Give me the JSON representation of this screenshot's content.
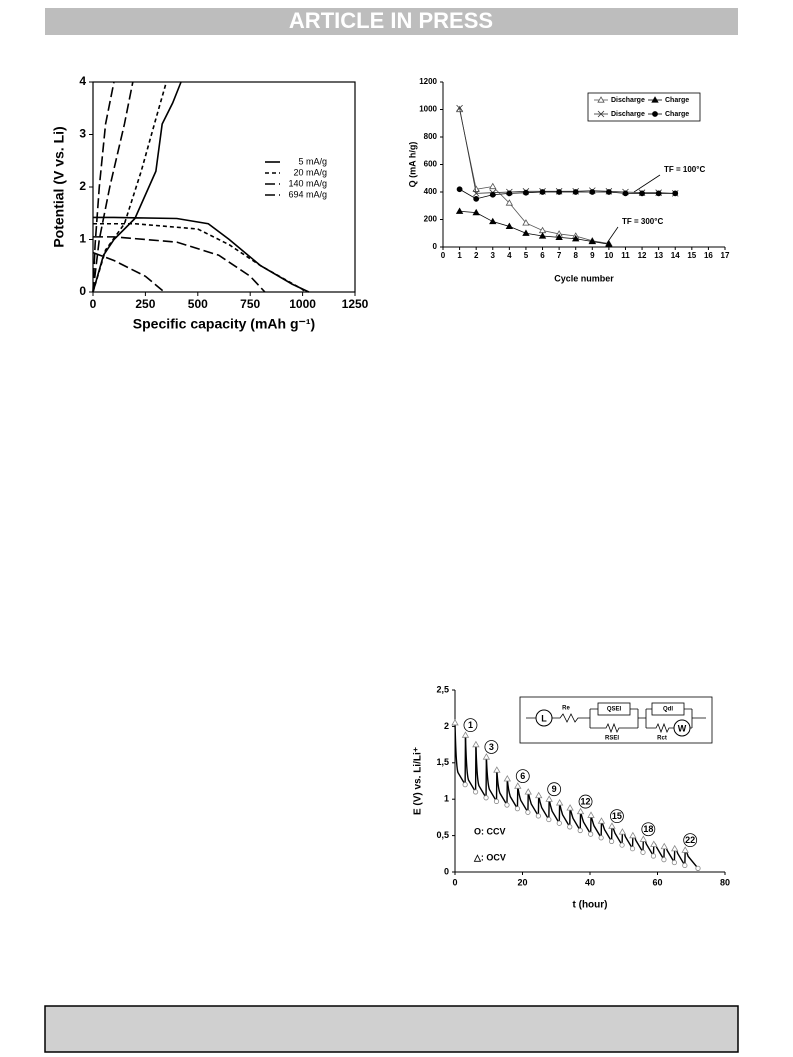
{
  "header": {
    "banner": "ARTICLE IN PRESS"
  },
  "chart_data": [
    {
      "type": "line",
      "xlabel": "Specific capacity (mAh g⁻¹)",
      "ylabel": "Potential (V vs. Li)",
      "xlim": [
        0,
        1250
      ],
      "xticks": [
        0,
        250,
        500,
        750,
        1000,
        1250
      ],
      "ylim": [
        0,
        4
      ],
      "yticks": [
        0,
        1,
        2,
        3,
        4
      ],
      "frame": true,
      "series": [
        {
          "name": "5 mA/g",
          "color": "#000000",
          "dash": "solid",
          "x": [
            0,
            100,
            400,
            550,
            650,
            800,
            950,
            1030,
            null,
            0,
            50,
            100,
            200,
            300,
            330,
            380,
            420
          ],
          "values": [
            1.42,
            1.42,
            1.4,
            1.3,
            1.0,
            0.5,
            0.15,
            0,
            null,
            0,
            0.7,
            1.0,
            1.4,
            2.3,
            3.2,
            3.6,
            4.0
          ]
        },
        {
          "name": "20 mA/g",
          "color": "#000000",
          "dash": "short",
          "x": [
            0,
            200,
            500,
            650,
            800,
            1000,
            1010,
            null,
            0,
            60,
            150,
            230,
            300,
            350
          ],
          "values": [
            1.3,
            1.3,
            1.2,
            0.9,
            0.5,
            0.05,
            0,
            null,
            0,
            0.8,
            1.3,
            2.3,
            3.3,
            4.0
          ]
        },
        {
          "name": "140 mA/g",
          "color": "#000000",
          "dash": "long",
          "x": [
            0,
            100,
            400,
            600,
            750,
            820,
            null,
            0,
            30,
            80,
            150,
            190
          ],
          "values": [
            1.05,
            1.05,
            0.95,
            0.7,
            0.3,
            0,
            null,
            0,
            1.0,
            2.0,
            3.2,
            4.0
          ]
        },
        {
          "name": "694 mA/g",
          "color": "#000000",
          "dash": "long",
          "x": [
            0,
            100,
            250,
            340,
            null,
            0,
            10,
            30,
            60,
            100
          ],
          "values": [
            0.75,
            0.6,
            0.3,
            0,
            null,
            0,
            0.9,
            2.0,
            3.2,
            4.0
          ]
        }
      ]
    },
    {
      "type": "line",
      "xlabel": "Cycle number",
      "ylabel": "Q (mA h/g)",
      "xlim": [
        0,
        17
      ],
      "xticks": [
        0,
        1,
        2,
        3,
        4,
        5,
        6,
        7,
        8,
        9,
        10,
        11,
        12,
        13,
        14,
        15,
        16,
        17
      ],
      "ylim": [
        0,
        1200
      ],
      "yticks": [
        0,
        200,
        400,
        600,
        800,
        1000,
        1200
      ],
      "annotations": [
        "TF = 100°C",
        "TF = 300°C"
      ],
      "series": [
        {
          "name": "Discharge",
          "color": "#555555",
          "marker": "open-triangle",
          "x": [
            1,
            2,
            3,
            4,
            5,
            6,
            7,
            8,
            9,
            10
          ],
          "values": [
            1000,
            420,
            440,
            320,
            175,
            120,
            95,
            80,
            45,
            25
          ]
        },
        {
          "name": "Charge",
          "color": "#000000",
          "marker": "triangle",
          "x": [
            1,
            2,
            3,
            4,
            5,
            6,
            7,
            8,
            9,
            10
          ],
          "values": [
            260,
            250,
            185,
            150,
            100,
            80,
            70,
            60,
            40,
            20
          ]
        },
        {
          "name": "Discharge",
          "color": "#333333",
          "marker": "cross",
          "x": [
            1,
            2,
            3,
            4,
            5,
            6,
            7,
            8,
            9,
            10,
            11,
            12,
            13,
            14
          ],
          "values": [
            1010,
            390,
            395,
            400,
            405,
            405,
            405,
            405,
            410,
            405,
            400,
            395,
            395,
            390
          ]
        },
        {
          "name": "Charge",
          "color": "#000000",
          "marker": "circle",
          "x": [
            1,
            2,
            3,
            4,
            5,
            6,
            7,
            8,
            9,
            10,
            11,
            12,
            13,
            14
          ],
          "values": [
            420,
            350,
            380,
            390,
            395,
            400,
            400,
            400,
            400,
            400,
            390,
            390,
            390,
            390
          ]
        }
      ]
    },
    {
      "type": "gitt",
      "xlabel": "t (hour)",
      "ylabel": "E (V) vs. Li/Li⁺",
      "xlim": [
        0,
        80
      ],
      "xticks": [
        0,
        20,
        40,
        60,
        80
      ],
      "ylim": [
        0,
        2.5
      ],
      "yticks": [
        0,
        {
          "value": 0.5,
          "label": "0,5"
        },
        1,
        {
          "value": 1.5,
          "label": "1,5"
        },
        2,
        {
          "value": 2.5,
          "label": "2,5"
        }
      ],
      "circuit_labels": [
        "L",
        "Re",
        "QSEI",
        "RSEI",
        "Qdl",
        "Rct",
        "W"
      ],
      "peak_labels": [
        1,
        3,
        6,
        9,
        12,
        15,
        18,
        22
      ],
      "series": [
        {
          "name": "O: CCV",
          "color": "#888888",
          "marker": "open-circle",
          "x": [
            3.0,
            6.1,
            9.2,
            12.3,
            15.4,
            18.5,
            21.6,
            24.7,
            27.8,
            30.9,
            34,
            37.1,
            40.2,
            43.3,
            46.4,
            49.5,
            52.6,
            55.7,
            58.8,
            61.9,
            65,
            68.1,
            72
          ],
          "values": [
            1.2,
            1.1,
            1.02,
            0.97,
            0.92,
            0.87,
            0.82,
            0.77,
            0.72,
            0.67,
            0.62,
            0.57,
            0.52,
            0.47,
            0.42,
            0.37,
            0.32,
            0.27,
            0.22,
            0.17,
            0.13,
            0.09,
            0.05
          ]
        },
        {
          "name": "△: OCV",
          "color": "#888888",
          "marker": "open-triangle",
          "x": [
            0,
            3.1,
            6.2,
            9.3,
            12.4,
            15.5,
            18.6,
            21.7,
            24.8,
            27.9,
            31,
            34.1,
            37.2,
            40.3,
            43.4,
            46.5,
            49.6,
            52.7,
            55.8,
            58.9,
            62,
            65.1,
            68.2
          ],
          "values": [
            2.05,
            1.88,
            1.75,
            1.58,
            1.4,
            1.28,
            1.18,
            1.1,
            1.05,
            1.0,
            0.95,
            0.88,
            0.83,
            0.78,
            0.7,
            0.63,
            0.55,
            0.5,
            0.45,
            0.38,
            0.35,
            0.32,
            0.3
          ]
        }
      ]
    }
  ]
}
